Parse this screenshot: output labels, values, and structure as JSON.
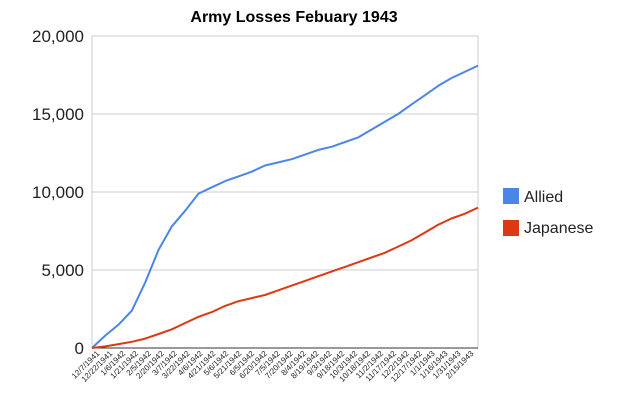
{
  "chart_data": {
    "type": "line",
    "title": "Army Losses Febuary 1943",
    "xlabel": "",
    "ylabel": "",
    "ylim": [
      0,
      20000
    ],
    "yticks": [
      "0",
      "5,000",
      "10,000",
      "15,000",
      "20,000"
    ],
    "grid": true,
    "legend": "right",
    "x_tick_labels": [
      "12/7/1941",
      "12/22/1941",
      "1/6/1942",
      "1/21/1942",
      "2/5/1942",
      "2/20/1942",
      "3/7/1942",
      "3/22/1942",
      "4/6/1942",
      "4/21/1942",
      "5/6/1942",
      "5/21/1942",
      "6/5/1942",
      "6/20/1942",
      "7/5/1942",
      "7/20/1942",
      "8/4/1942",
      "8/19/1942",
      "9/3/1942",
      "9/18/1942",
      "10/3/1942",
      "10/18/1942",
      "11/2/1942",
      "11/17/1942",
      "12/2/1942",
      "12/17/1942",
      "1/1/1943",
      "1/16/1943",
      "1/31/1943",
      "2/15/1943"
    ],
    "series": [
      {
        "name": "Allied",
        "color": "#4a86e8",
        "values": [
          0,
          800,
          1500,
          2400,
          4200,
          6300,
          7800,
          8800,
          9900,
          10300,
          10700,
          11000,
          11300,
          11700,
          11900,
          12100,
          12400,
          12700,
          12900,
          13200,
          13500,
          14000,
          14500,
          15000,
          15600,
          16200,
          16800,
          17300,
          17700,
          18100
        ]
      },
      {
        "name": "Japanese",
        "color": "#dc3912",
        "values": [
          0,
          100,
          250,
          400,
          600,
          900,
          1200,
          1600,
          2000,
          2300,
          2700,
          3000,
          3200,
          3400,
          3700,
          4000,
          4300,
          4600,
          4900,
          5200,
          5500,
          5800,
          6100,
          6500,
          6900,
          7400,
          7900,
          8300,
          8600,
          9000
        ]
      }
    ]
  }
}
